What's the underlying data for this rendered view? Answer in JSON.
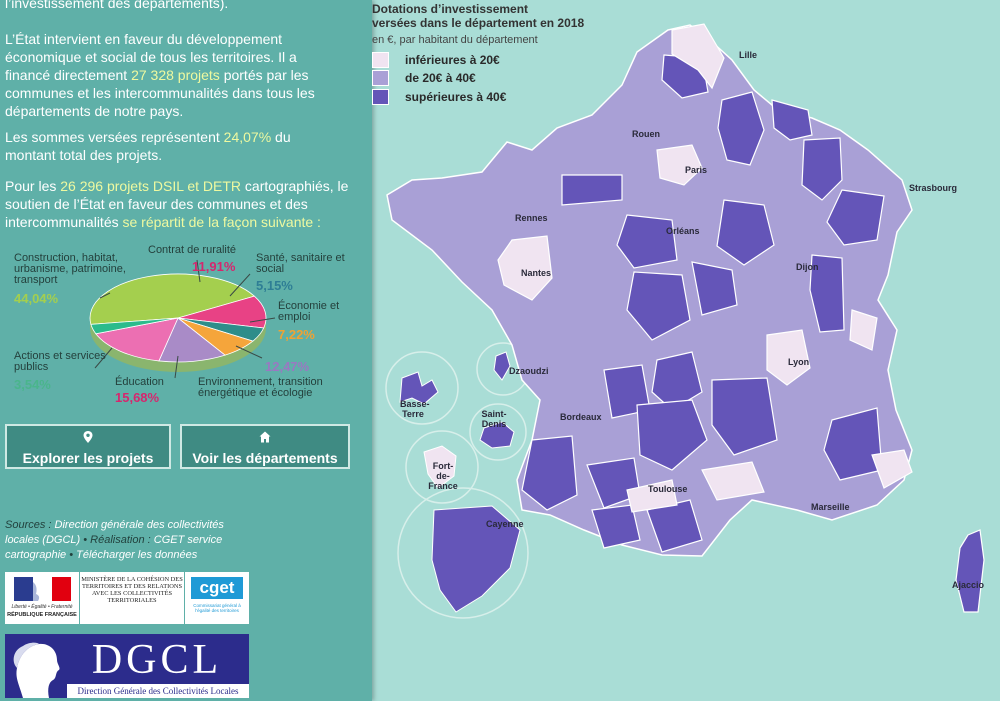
{
  "panel": {
    "intro_cont": "l’investissement des départements).",
    "p1": {
      "a": "L’État intervient en faveur du développement économique et social de tous les territoires. Il a financé directement ",
      "num": "27 328 projets",
      "b": " portés par les communes et les intercommunalités dans tous les départements de notre pays."
    },
    "p2": {
      "a": "Les sommes versées représentent ",
      "num": "24,07%",
      "b": " du montant total des projets."
    },
    "p3": {
      "a": "Pour les ",
      "num": "26 296 projets DSIL et DETR",
      "b": " cartographiés, le soutien de l’État en faveur des communes et des intercommunalités ",
      "c": "se répartit de la façon suivante :"
    }
  },
  "pie": {
    "slices": [
      {
        "key": "construction",
        "label": "Construction, habitat, urbanisme, patrimoine, transport",
        "pct": "44,04%",
        "value": 44.04,
        "color": "#a4cf4e",
        "pct_color": "#a4cf4e"
      },
      {
        "key": "ruralite",
        "label": "Contrat de ruralité",
        "pct": "11,91%",
        "value": 11.91,
        "color": "#e84285",
        "pct_color": "#d6266e"
      },
      {
        "key": "sante",
        "label": "Santé, sanitaire et social",
        "pct": "5,15%",
        "value": 5.15,
        "color": "#2e8d8a",
        "pct_color": "#2e7e95"
      },
      {
        "key": "economie",
        "label": "Économie et emploi",
        "pct": "7,22%",
        "value": 7.22,
        "color": "#f5a53b",
        "pct_color": "#f0a233"
      },
      {
        "key": "environnement",
        "label": "Environnement, transition énergétique et écologie",
        "pct": "12,47%",
        "value": 12.47,
        "color": "#a98bc7",
        "pct_color": "#9a78c2"
      },
      {
        "key": "education",
        "label": "Éducation",
        "pct": "15,68%",
        "value": 15.68,
        "color": "#ec6fb2",
        "pct_color": "#d6266e"
      },
      {
        "key": "actions",
        "label": "Actions et services publics",
        "pct": "3,54%",
        "value": 3.54,
        "color": "#2bbb8c",
        "pct_color": "#4ab58c"
      }
    ]
  },
  "buttons": {
    "projets": {
      "icon": "map-pin-icon",
      "label": "Explorer les projets"
    },
    "departements": {
      "icon": "home-icon",
      "label": "Voir les départements"
    }
  },
  "sources": {
    "label": "Sources : ",
    "dgcl": "Direction générale des collectivités locales (DGCL)",
    "sep1": " • Réalisation : ",
    "cget": "CGET service cartographie",
    "sep2": " • ",
    "download": "Télécharger les données"
  },
  "logos": {
    "rf_line1": "Liberté • Égalité • Fraternité",
    "rf_line2": "RÉPUBLIQUE FRANÇAISE",
    "ministere": "MINISTÈRE DE LA COHÉSION DES TERRITOIRES ET DES RELATIONS AVEC LES COLLECTIVITÉS TERRITORIALES",
    "cget": "cget",
    "cget_sub": "Commissariat général à l’égalité des territoires",
    "dgcl": "DGCL",
    "dgcl_sub": "Direction Générale des Collectivités Locales"
  },
  "legend": {
    "title_line1": "Dotations d’investissement",
    "title_line2": "versées dans le département en 2018",
    "subtitle": "en €, par habitant du département",
    "items": [
      {
        "label": "inférieures à 20€",
        "color": "#f0e4f1"
      },
      {
        "label": "de 20€ à 40€",
        "color": "#a9a0d6"
      },
      {
        "label": "supérieures à 40€",
        "color": "#6455b8"
      }
    ]
  },
  "cities": {
    "lille": "Lille",
    "rouen": "Rouen",
    "paris": "Paris",
    "strasbourg": "Strasbourg",
    "rennes": "Rennes",
    "orleans": "Orléans",
    "dijon": "Dijon",
    "nantes": "Nantes",
    "lyon": "Lyon",
    "bordeaux": "Bordeaux",
    "toulouse": "Toulouse",
    "marseille": "Marseille",
    "ajaccio": "Ajaccio",
    "dzaoudzi": "Dzaoudzi",
    "basse_terre": "Basse-Terre",
    "saint_denis": "Saint-Denis",
    "fort_de_france": "Fort-de-France",
    "cayenne": "Cayenne"
  },
  "colors": {
    "panel": "#5fb0a8",
    "highlight": "#eef9a0",
    "button": "#3f8b83",
    "map_bg": "#a9ddd6"
  }
}
